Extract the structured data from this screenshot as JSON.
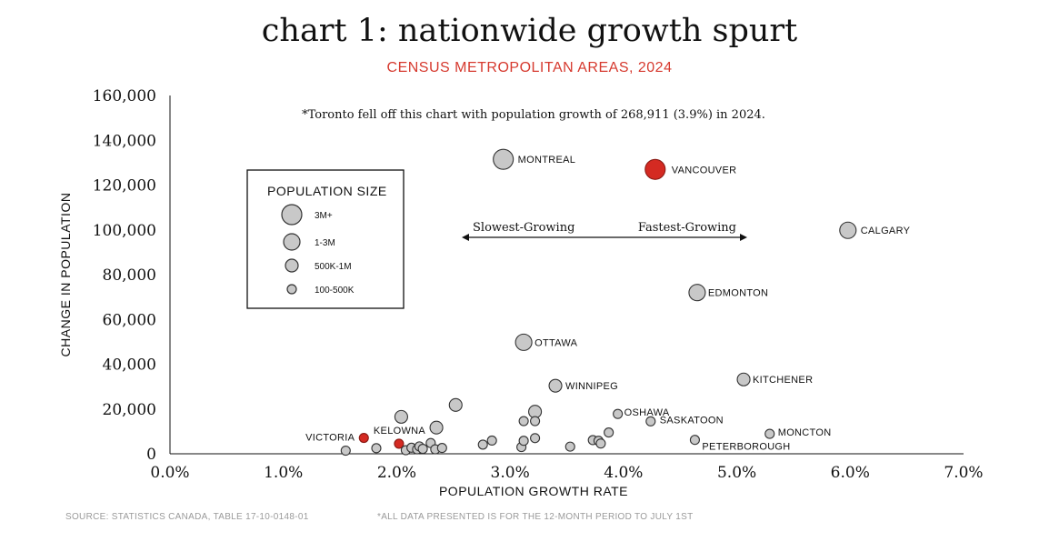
{
  "title": "chart 1: nationwide growth spurt",
  "subtitle": "CENSUS METROPOLITAN AREAS, 2024",
  "note": "*Toronto fell off this chart with population growth of 268,911 (3.9%) in 2024.",
  "footer": {
    "source": "SOURCE: STATISTICS CANADA, TABLE 17-10-0148-01",
    "note": "*ALL DATA PRESENTED IS FOR THE 12-MONTH PERIOD TO JULY 1ST"
  },
  "colors": {
    "highlight": "#d42a22",
    "point": "#c8c8c8",
    "subtitle": "#d63a2f"
  },
  "chart_data": {
    "type": "scatter",
    "xlabel": "POPULATION GROWTH RATE",
    "ylabel": "CHANGE IN POPULATION",
    "xlim": [
      0,
      7
    ],
    "ylim": [
      0,
      160000
    ],
    "xticks": [
      "0.0%",
      "1.0%",
      "2.0%",
      "3.0%",
      "4.0%",
      "5.0%",
      "6.0%",
      "7.0%"
    ],
    "yticks": [
      "0",
      "20,000",
      "40,000",
      "60,000",
      "80,000",
      "100,000",
      "120,000",
      "140,000",
      "160,000"
    ],
    "legend": {
      "title": "POPULATION SIZE",
      "placement": "left",
      "items": [
        {
          "label": "3M+",
          "size": "xl"
        },
        {
          "label": "1-3M",
          "size": "l"
        },
        {
          "label": "500K-1M",
          "size": "m"
        },
        {
          "label": "100-500K",
          "size": "s"
        }
      ]
    },
    "arrow": {
      "left_label": "Slowest-Growing",
      "right_label": "Fastest-Growing"
    },
    "points": [
      {
        "label": "MONTREAL",
        "x": 2.94,
        "y": 131500,
        "size": "xl",
        "highlight": false
      },
      {
        "label": "VANCOUVER",
        "x": 4.28,
        "y": 127000,
        "size": "xl",
        "highlight": true
      },
      {
        "label": "CALGARY",
        "x": 5.98,
        "y": 99800,
        "size": "l",
        "highlight": false
      },
      {
        "label": "EDMONTON",
        "x": 4.65,
        "y": 72000,
        "size": "l",
        "highlight": false
      },
      {
        "label": "OTTAWA",
        "x": 3.12,
        "y": 49800,
        "size": "l",
        "highlight": false
      },
      {
        "label": "WINNIPEG",
        "x": 3.4,
        "y": 30400,
        "size": "m",
        "highlight": false
      },
      {
        "label": "KITCHENER",
        "x": 5.06,
        "y": 33200,
        "size": "m",
        "highlight": false
      },
      {
        "label": "OSHAWA",
        "x": 3.95,
        "y": 17800,
        "size": "s",
        "highlight": false
      },
      {
        "label": "SASKATOON",
        "x": 4.24,
        "y": 14500,
        "size": "s",
        "highlight": false
      },
      {
        "label": "MONCTON",
        "x": 5.29,
        "y": 8900,
        "size": "s",
        "highlight": false
      },
      {
        "label": "PETERBOROUGH",
        "x": 4.63,
        "y": 6200,
        "size": "s",
        "highlight": false
      },
      {
        "label": "VICTORIA",
        "x": 1.71,
        "y": 7100,
        "size": "s",
        "highlight": true
      },
      {
        "label": "KELOWNA",
        "x": 2.02,
        "y": 4500,
        "size": "s",
        "highlight": true
      },
      {
        "label": "",
        "x": 2.52,
        "y": 21800,
        "size": "m",
        "highlight": false
      },
      {
        "label": "",
        "x": 2.04,
        "y": 16500,
        "size": "m",
        "highlight": false
      },
      {
        "label": "",
        "x": 2.35,
        "y": 11700,
        "size": "m",
        "highlight": false
      },
      {
        "label": "",
        "x": 3.22,
        "y": 18800,
        "size": "m",
        "highlight": false
      },
      {
        "label": "",
        "x": 3.12,
        "y": 14600,
        "size": "s",
        "highlight": false
      },
      {
        "label": "",
        "x": 3.22,
        "y": 14600,
        "size": "s",
        "highlight": false
      },
      {
        "label": "",
        "x": 1.55,
        "y": 1400,
        "size": "s",
        "highlight": false
      },
      {
        "label": "",
        "x": 1.82,
        "y": 2500,
        "size": "s",
        "highlight": false
      },
      {
        "label": "",
        "x": 2.08,
        "y": 1600,
        "size": "s",
        "highlight": false
      },
      {
        "label": "",
        "x": 2.13,
        "y": 2700,
        "size": "s",
        "highlight": false
      },
      {
        "label": "",
        "x": 2.18,
        "y": 2000,
        "size": "s",
        "highlight": false
      },
      {
        "label": "",
        "x": 2.2,
        "y": 3300,
        "size": "s",
        "highlight": false
      },
      {
        "label": "",
        "x": 2.23,
        "y": 2200,
        "size": "s",
        "highlight": false
      },
      {
        "label": "",
        "x": 2.3,
        "y": 4800,
        "size": "s",
        "highlight": false
      },
      {
        "label": "",
        "x": 2.34,
        "y": 2000,
        "size": "s",
        "highlight": false
      },
      {
        "label": "",
        "x": 2.4,
        "y": 2600,
        "size": "s",
        "highlight": false
      },
      {
        "label": "",
        "x": 2.76,
        "y": 4100,
        "size": "s",
        "highlight": false
      },
      {
        "label": "",
        "x": 2.84,
        "y": 5900,
        "size": "s",
        "highlight": false
      },
      {
        "label": "",
        "x": 3.1,
        "y": 3000,
        "size": "s",
        "highlight": false
      },
      {
        "label": "",
        "x": 3.12,
        "y": 5800,
        "size": "s",
        "highlight": false
      },
      {
        "label": "",
        "x": 3.22,
        "y": 7000,
        "size": "s",
        "highlight": false
      },
      {
        "label": "",
        "x": 3.53,
        "y": 3200,
        "size": "s",
        "highlight": false
      },
      {
        "label": "",
        "x": 3.73,
        "y": 6100,
        "size": "s",
        "highlight": false
      },
      {
        "label": "",
        "x": 3.78,
        "y": 5800,
        "size": "s",
        "highlight": false
      },
      {
        "label": "",
        "x": 3.8,
        "y": 4600,
        "size": "s",
        "highlight": false
      },
      {
        "label": "",
        "x": 3.87,
        "y": 9500,
        "size": "s",
        "highlight": false
      }
    ]
  }
}
